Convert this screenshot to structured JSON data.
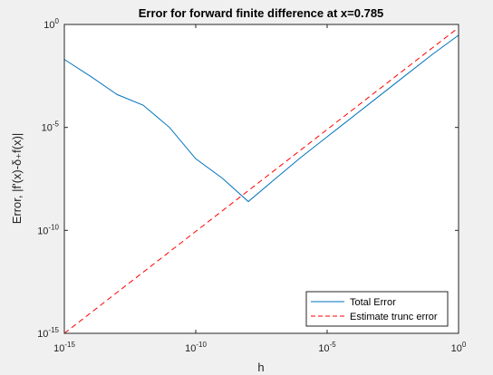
{
  "chart_data": {
    "type": "line",
    "title": "Error for forward finite difference at x=0.785",
    "xlabel": "h",
    "ylabel": "Error, |f'(x)-δ₊f(x)|",
    "xscale": "log",
    "yscale": "log",
    "xlim": [
      1e-15,
      1
    ],
    "ylim": [
      1e-15,
      1
    ],
    "x_ticks": [
      {
        "value": 1e-15,
        "base": "10",
        "exp": "-15"
      },
      {
        "value": 1e-10,
        "base": "10",
        "exp": "-10"
      },
      {
        "value": 1e-05,
        "base": "10",
        "exp": "-5"
      },
      {
        "value": 1,
        "base": "10",
        "exp": "0"
      }
    ],
    "y_ticks": [
      {
        "value": 1e-15,
        "base": "10",
        "exp": "-15"
      },
      {
        "value": 1e-10,
        "base": "10",
        "exp": "-10"
      },
      {
        "value": 1e-05,
        "base": "10",
        "exp": "-5"
      },
      {
        "value": 1,
        "base": "10",
        "exp": "0"
      }
    ],
    "grid": false,
    "legend_position": "bottom-right",
    "series": [
      {
        "name": "Total Error",
        "color": "#0072bd",
        "style": "solid",
        "x": [
          1e-15,
          1e-14,
          1e-13,
          1e-12,
          1e-11,
          1e-10,
          1e-09,
          1e-08,
          1e-07,
          1e-06,
          1e-05,
          0.0001,
          0.001,
          0.01,
          0.1,
          1
        ],
        "y": [
          0.02,
          0.003,
          0.0004,
          0.00012,
          1e-05,
          3e-07,
          3.5e-08,
          2.5e-09,
          3e-08,
          3.5e-07,
          3.5e-06,
          3.5e-05,
          0.00035,
          0.0035,
          0.035,
          0.3
        ]
      },
      {
        "name": "Estimate trunc error",
        "color": "#ff0000",
        "style": "dashed",
        "x": [
          1e-15,
          1
        ],
        "y": [
          1e-15,
          0.707
        ]
      }
    ]
  }
}
